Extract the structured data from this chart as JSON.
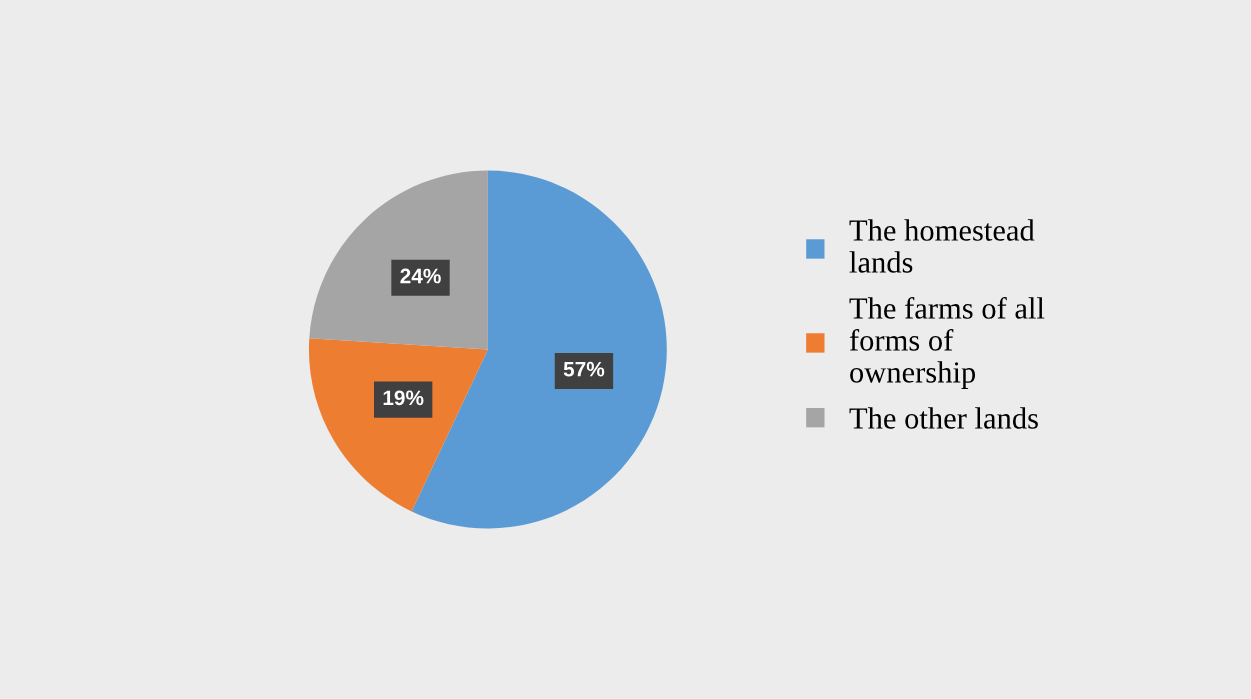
{
  "chart_data": {
    "type": "pie",
    "categories": [
      "The homestead lands",
      "The farms of all forms of ownership",
      "The other lands"
    ],
    "values": [
      57,
      19,
      24
    ],
    "colors": [
      "#5b9bd5",
      "#ed7d31",
      "#a5a5a5"
    ],
    "value_labels": [
      "57%",
      "19%",
      "24%"
    ],
    "legend": "right"
  }
}
